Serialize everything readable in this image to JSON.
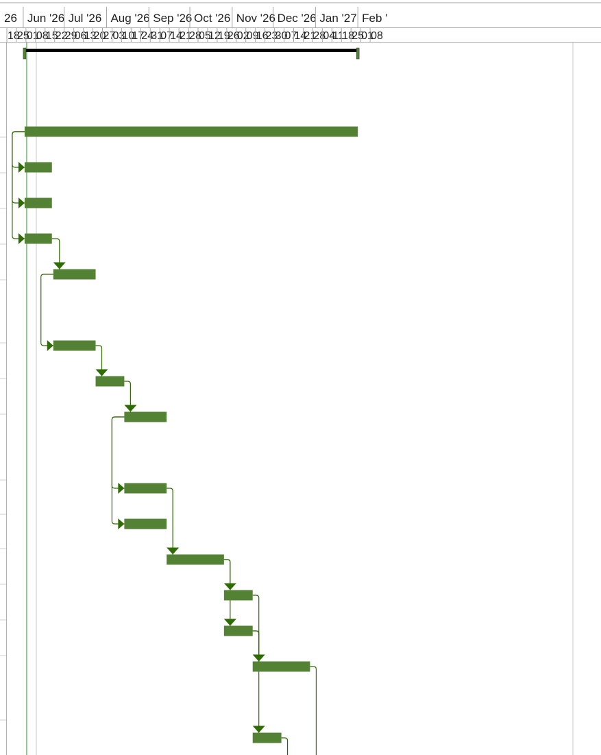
{
  "timescale": {
    "months": [
      "26",
      "Jun '26",
      "Jul '26",
      "Aug '26",
      "Sep '26",
      "Oct '26",
      "Nov '26",
      "Dec '26",
      "Jan '27",
      "Feb '"
    ],
    "days": [
      "18",
      "25",
      "01",
      "08",
      "15",
      "22",
      "29",
      "06",
      "13",
      "20",
      "27",
      "03",
      "10",
      "17",
      "24",
      "31",
      "07",
      "14",
      "21",
      "28",
      "05",
      "12",
      "19",
      "26",
      "02",
      "09",
      "16",
      "23",
      "30",
      "07",
      "14",
      "21",
      "28",
      "04",
      "11",
      "18",
      "25",
      "01",
      "08"
    ]
  },
  "colors": {
    "bar": "#548235",
    "link": "#2e6b00",
    "summary_bar": "#000000",
    "header_line": "#a6a6a6",
    "grid_line": "#c8c8c8",
    "status_line": "#8fca8f",
    "background": "#ffffff"
  },
  "chart_data": {
    "type": "gantt",
    "timescale_start": "2026-05-18",
    "timescale_unit": "week",
    "project_summary": {
      "start": "2026-05-31",
      "finish": "2027-01-30"
    },
    "status_date": "2026-06-01",
    "tasks": [
      {
        "id": "t1",
        "row": 3,
        "start": "2026-05-31",
        "finish": "2027-01-30"
      },
      {
        "id": "t2",
        "row": 4,
        "start": "2026-05-31",
        "finish": "2026-06-20"
      },
      {
        "id": "t3",
        "row": 5,
        "start": "2026-05-31",
        "finish": "2026-06-20"
      },
      {
        "id": "t4",
        "row": 6,
        "start": "2026-05-31",
        "finish": "2026-06-20"
      },
      {
        "id": "t5",
        "row": 7,
        "start": "2026-06-21",
        "finish": "2026-07-22"
      },
      {
        "id": "t6",
        "row": 9,
        "start": "2026-06-21",
        "finish": "2026-07-22"
      },
      {
        "id": "t7",
        "row": 10,
        "start": "2026-07-22",
        "finish": "2026-08-12"
      },
      {
        "id": "t8",
        "row": 11,
        "start": "2026-08-12",
        "finish": "2026-09-12"
      },
      {
        "id": "t9",
        "row": 13,
        "start": "2026-08-12",
        "finish": "2026-09-12"
      },
      {
        "id": "t10",
        "row": 14,
        "start": "2026-08-12",
        "finish": "2026-09-12"
      },
      {
        "id": "t11",
        "row": 15,
        "start": "2026-09-12",
        "finish": "2026-10-24"
      },
      {
        "id": "t12",
        "row": 16,
        "start": "2026-10-24",
        "finish": "2026-11-14"
      },
      {
        "id": "t13",
        "row": 17,
        "start": "2026-10-24",
        "finish": "2026-11-14"
      },
      {
        "id": "t14",
        "row": 18,
        "start": "2026-11-14",
        "finish": "2026-12-26"
      },
      {
        "id": "t15",
        "row": 20,
        "start": "2026-11-14",
        "finish": "2026-12-05"
      }
    ],
    "links": [
      {
        "from": "t1",
        "to": "t2",
        "type": "SS"
      },
      {
        "from": "t1",
        "to": "t3",
        "type": "SS"
      },
      {
        "from": "t1",
        "to": "t4",
        "type": "SS"
      },
      {
        "from": "t4",
        "to": "t5",
        "type": "FS"
      },
      {
        "from": "t5",
        "to": "t6",
        "type": "SS"
      },
      {
        "from": "t6",
        "to": "t7",
        "type": "FS"
      },
      {
        "from": "t7",
        "to": "t8",
        "type": "FS"
      },
      {
        "from": "t8",
        "to": "t9",
        "type": "SS"
      },
      {
        "from": "t8",
        "to": "t10",
        "type": "SS"
      },
      {
        "from": "t9",
        "to": "t11",
        "type": "FS"
      },
      {
        "from": "t11",
        "to": "t12",
        "type": "FS"
      },
      {
        "from": "t11",
        "to": "t13",
        "type": "FS"
      },
      {
        "from": "t12",
        "to": "t14",
        "type": "FS"
      },
      {
        "from": "t13",
        "to": "t14",
        "type": "FS"
      },
      {
        "from": "t13",
        "to": "t15",
        "type": "FS"
      },
      {
        "from": "t14",
        "to": "t16",
        "type": "FS"
      },
      {
        "from": "t15",
        "to": "t17",
        "type": "FS"
      }
    ]
  }
}
